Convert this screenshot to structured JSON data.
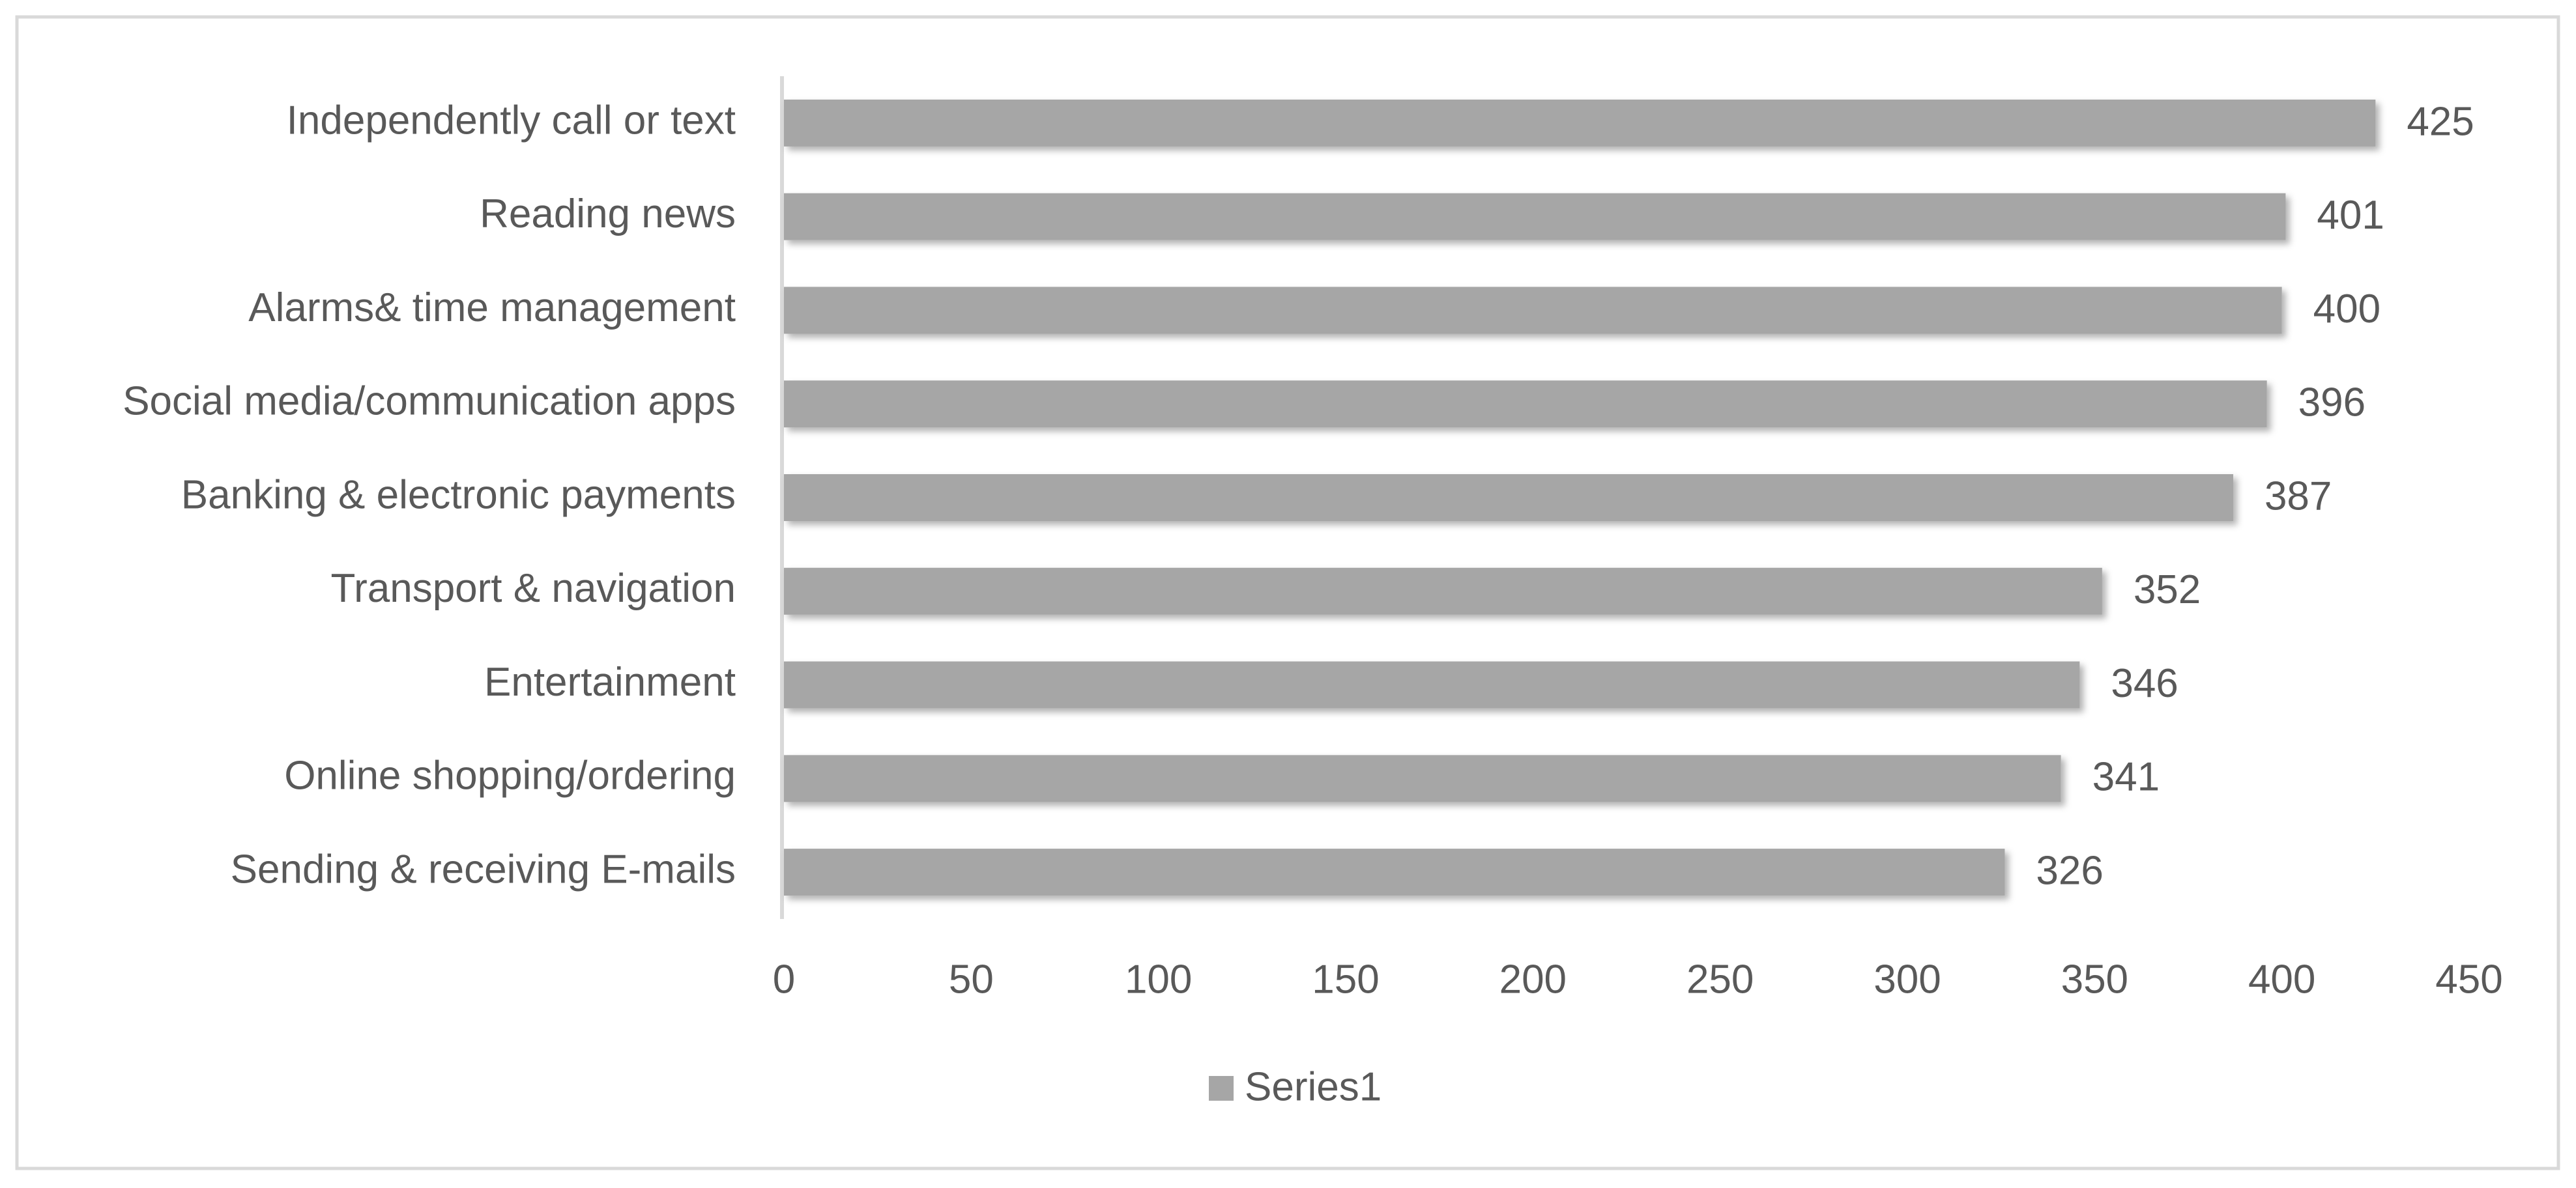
{
  "chart_data": {
    "type": "bar",
    "orientation": "horizontal",
    "categories": [
      "Independently call or text",
      "Reading news",
      "Alarms& time management",
      "Social media/communication apps",
      "Banking & electronic payments",
      "Transport & navigation",
      "Entertainment",
      "Online shopping/ordering",
      "Sending & receiving E-mails"
    ],
    "series": [
      {
        "name": "Series1",
        "color": "#a6a6a6",
        "values": [
          425,
          401,
          400,
          396,
          387,
          352,
          346,
          341,
          326
        ]
      }
    ],
    "xlim": [
      0,
      450
    ],
    "xticks": [
      0,
      50,
      100,
      150,
      200,
      250,
      300,
      350,
      400,
      450
    ],
    "grid": false,
    "legend": "bottom"
  }
}
